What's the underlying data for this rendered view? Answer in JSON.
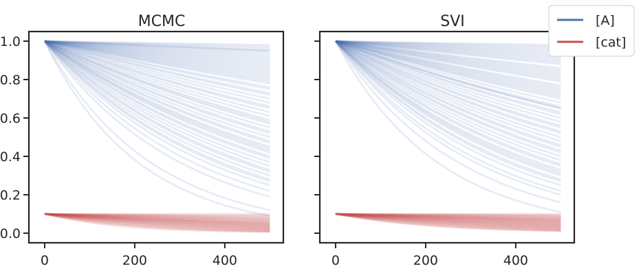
{
  "colors": {
    "A": "#4c72b0",
    "cat": "#c44e52",
    "axis": "#262626"
  },
  "legend": {
    "placement": "top-right",
    "entries": [
      "[A]",
      "[cat]"
    ]
  },
  "chart_data": [
    {
      "type": "line",
      "title": "MCMC",
      "xlabel": "",
      "ylabel": "",
      "xlim": [
        -35,
        530
      ],
      "ylim": [
        -0.05,
        1.05
      ],
      "xticks": [
        0,
        200,
        400
      ],
      "xtick_labels": [
        "0",
        "200",
        "400"
      ],
      "yticks": [
        0.0,
        0.2,
        0.4,
        0.6,
        0.8,
        1.0
      ],
      "ytick_labels": [
        "0.0",
        "0.2",
        "0.4",
        "0.6",
        "0.8",
        "1.0"
      ],
      "x": [
        0,
        500
      ],
      "series": [
        {
          "name": "[A]",
          "initial": 1.0,
          "final_values": [
            0.98,
            0.97,
            0.96,
            0.95,
            0.95,
            0.94,
            0.93,
            0.92,
            0.91,
            0.9,
            0.89,
            0.88,
            0.87,
            0.86,
            0.85,
            0.84,
            0.83,
            0.82,
            0.81,
            0.8,
            0.79,
            0.78,
            0.76,
            0.75,
            0.73,
            0.72,
            0.7,
            0.68,
            0.66,
            0.65,
            0.63,
            0.61,
            0.59,
            0.58,
            0.57,
            0.55,
            0.53,
            0.52,
            0.5,
            0.48,
            0.47,
            0.45,
            0.44,
            0.43,
            0.42,
            0.4,
            0.39,
            0.37,
            0.35,
            0.33,
            0.32,
            0.3,
            0.28,
            0.27,
            0.25,
            0.22,
            0.19,
            0.12,
            0.09
          ]
        },
        {
          "name": "[cat]",
          "initial": 0.1,
          "final_values": [
            0.1,
            0.09,
            0.09,
            0.08,
            0.08,
            0.075,
            0.07,
            0.068,
            0.065,
            0.06,
            0.058,
            0.055,
            0.052,
            0.05,
            0.048,
            0.045,
            0.042,
            0.04,
            0.038,
            0.035,
            0.032,
            0.03,
            0.028,
            0.025,
            0.022,
            0.02,
            0.018,
            0.015,
            0.012,
            0.01,
            0.008,
            0.005
          ]
        }
      ]
    },
    {
      "type": "line",
      "title": "SVI",
      "xlabel": "",
      "ylabel": "",
      "xlim": [
        -35,
        530
      ],
      "ylim": [
        -0.05,
        1.05
      ],
      "xticks": [
        0,
        200,
        400
      ],
      "xtick_labels": [
        "0",
        "200",
        "400"
      ],
      "yticks": [
        0.0,
        0.2,
        0.4,
        0.6,
        0.8,
        1.0
      ],
      "ytick_labels": [],
      "x": [
        0,
        500
      ],
      "series": [
        {
          "name": "[A]",
          "initial": 1.0,
          "final_values": [
            0.98,
            0.97,
            0.96,
            0.95,
            0.94,
            0.93,
            0.92,
            0.91,
            0.9,
            0.89,
            0.88,
            0.86,
            0.85,
            0.84,
            0.83,
            0.82,
            0.81,
            0.8,
            0.79,
            0.77,
            0.76,
            0.75,
            0.74,
            0.73,
            0.72,
            0.71,
            0.7,
            0.68,
            0.66,
            0.65,
            0.65,
            0.63,
            0.62,
            0.6,
            0.58,
            0.56,
            0.55,
            0.53,
            0.52,
            0.5,
            0.48,
            0.46,
            0.45,
            0.43,
            0.42,
            0.4,
            0.38,
            0.36,
            0.35,
            0.33,
            0.32,
            0.31,
            0.3,
            0.28,
            0.27,
            0.25,
            0.22,
            0.2,
            0.16,
            0.11
          ]
        },
        {
          "name": "[cat]",
          "initial": 0.1,
          "final_values": [
            0.1,
            0.095,
            0.09,
            0.088,
            0.085,
            0.08,
            0.078,
            0.075,
            0.072,
            0.07,
            0.068,
            0.065,
            0.062,
            0.06,
            0.058,
            0.055,
            0.052,
            0.05,
            0.048,
            0.045,
            0.042,
            0.04,
            0.038,
            0.035,
            0.032,
            0.03,
            0.028,
            0.025,
            0.022,
            0.02,
            0.018,
            0.015,
            0.012,
            0.01
          ]
        }
      ]
    }
  ]
}
